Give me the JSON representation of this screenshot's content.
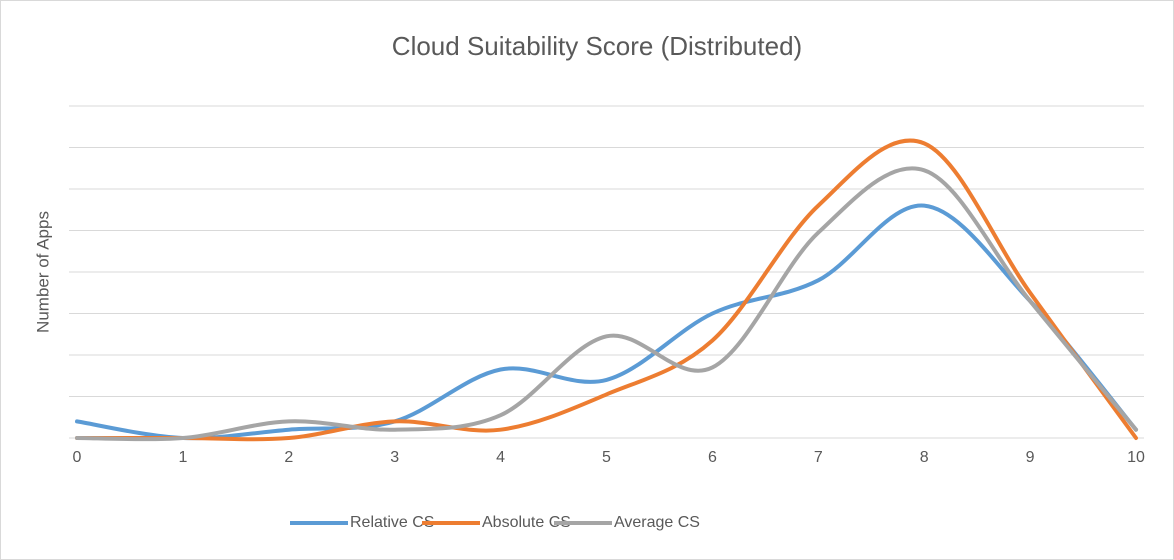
{
  "chart_data": {
    "type": "line",
    "title": "Cloud Suitability Score (Distributed)",
    "y_label": "Number of Apps",
    "x": [
      0,
      1,
      2,
      3,
      4,
      5,
      6,
      7,
      8,
      9,
      10
    ],
    "xlim": [
      0,
      10
    ],
    "xticks": [
      0,
      1,
      2,
      3,
      4,
      5,
      6,
      7,
      8,
      9,
      10
    ],
    "ylim": [
      0,
      8
    ],
    "yticks": [
      0,
      1,
      2,
      3,
      4,
      5,
      6,
      7,
      8
    ],
    "grid": true,
    "smooth": true,
    "legend": "bottom",
    "series": [
      {
        "name": "Relative CS",
        "color": "#5b9bd5",
        "values": [
          0.4,
          0,
          0.2,
          0.4,
          1.65,
          1.4,
          3.0,
          3.8,
          5.6,
          3.3,
          0.2
        ]
      },
      {
        "name": "Absolute CS",
        "color": "#ed7d31",
        "values": [
          0,
          0,
          0,
          0.4,
          0.2,
          1.05,
          2.35,
          5.6,
          7.1,
          3.5,
          0
        ]
      },
      {
        "name": "Average CS",
        "color": "#a5a5a5",
        "values": [
          0,
          0,
          0.4,
          0.2,
          0.55,
          2.45,
          1.7,
          4.95,
          6.45,
          3.3,
          0.2
        ]
      }
    ]
  }
}
